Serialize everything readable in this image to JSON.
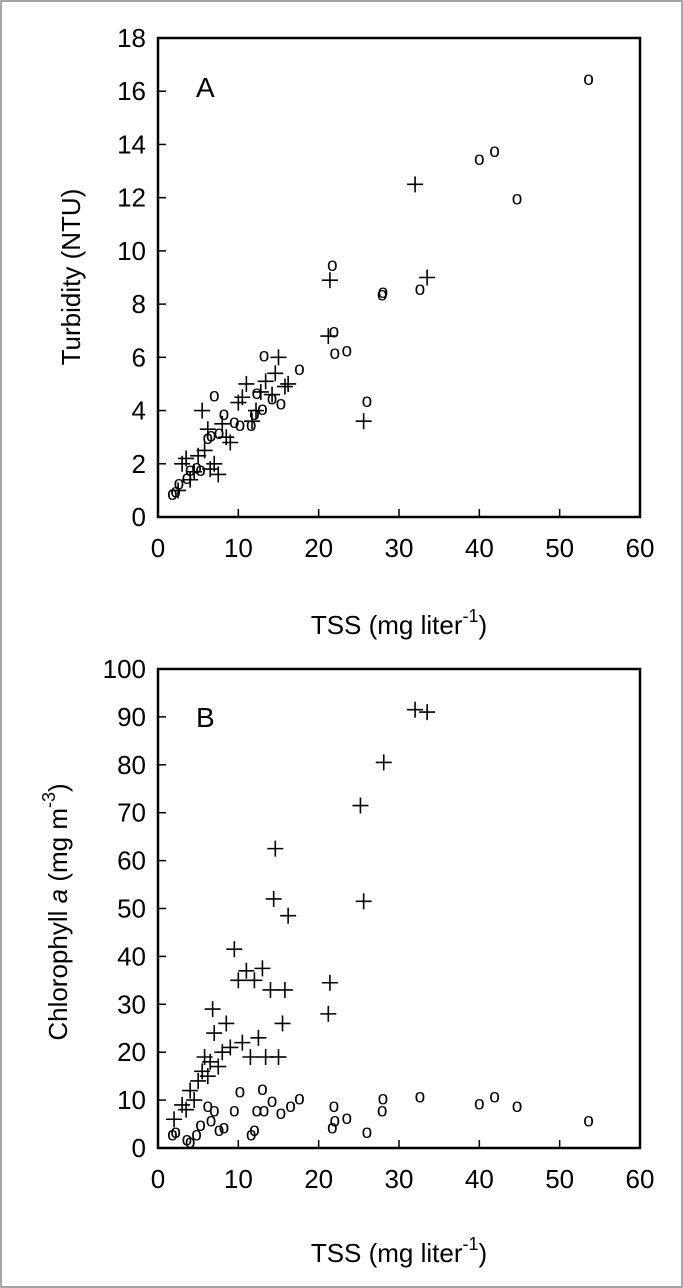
{
  "chart_data": [
    {
      "type": "scatter",
      "panel_label": "A",
      "xlabel": "TSS (mg liter",
      "xlabel_sup": "-1",
      "xlabel_end": ")",
      "ylabel": "Turbidity (NTU)",
      "xlim": [
        0,
        60
      ],
      "ylim": [
        0,
        18
      ],
      "xticks": [
        "0",
        "10",
        "20",
        "30",
        "40",
        "50",
        "60"
      ],
      "yticks": [
        "0",
        "2",
        "4",
        "6",
        "8",
        "10",
        "12",
        "14",
        "16",
        "18"
      ],
      "grid": false,
      "series": [
        {
          "marker": "o",
          "x": [
            1.8,
            2.2,
            2.6,
            3.6,
            4.0,
            4.8,
            5.3,
            6.2,
            6.6,
            7.0,
            7.6,
            8.2,
            9.5,
            10.2,
            11.6,
            12.0,
            12.3,
            13.0,
            13.2,
            14.2,
            15.3,
            17.6,
            21.7,
            21.9,
            22.0,
            23.5,
            26.0,
            27.9,
            28.0,
            32.6,
            40.0,
            41.9,
            44.7,
            53.6
          ],
          "y": [
            0.9,
            1.0,
            1.3,
            1.5,
            1.8,
            1.9,
            1.8,
            3.0,
            3.1,
            4.6,
            3.2,
            3.9,
            3.6,
            3.5,
            3.5,
            3.9,
            4.7,
            4.1,
            6.1,
            4.5,
            4.3,
            5.6,
            9.5,
            7.0,
            6.2,
            6.3,
            4.4,
            8.4,
            8.5,
            8.6,
            13.5,
            13.8,
            12.0,
            16.5
          ]
        },
        {
          "marker": "+",
          "x": [
            2.5,
            3.0,
            3.5,
            4.0,
            4.5,
            5.0,
            5.5,
            5.8,
            6.2,
            6.5,
            7.0,
            7.5,
            8.0,
            8.5,
            9.0,
            10.0,
            10.5,
            11.0,
            11.7,
            12.2,
            12.8,
            13.4,
            14.2,
            14.6,
            15.0,
            15.8,
            16.2,
            21.2,
            21.4,
            25.6,
            32.0,
            33.5
          ],
          "y": [
            1.0,
            2.0,
            2.2,
            1.4,
            1.7,
            2.3,
            4.0,
            2.5,
            3.3,
            1.8,
            2.0,
            1.6,
            3.5,
            3.0,
            2.8,
            4.3,
            4.5,
            5.0,
            3.6,
            4.0,
            4.7,
            5.1,
            4.6,
            5.4,
            6.0,
            4.9,
            5.0,
            6.8,
            8.9,
            3.6,
            12.5,
            9.0
          ]
        }
      ]
    },
    {
      "type": "scatter",
      "panel_label": "B",
      "xlabel": "TSS (mg liter",
      "xlabel_sup": "-1",
      "xlabel_end": ")",
      "ylabel_pre": "Chlorophyll ",
      "ylabel_italic": "a",
      "ylabel_post": " (mg m",
      "ylabel_sup": "-3",
      "ylabel_end": ")",
      "xlim": [
        0,
        60
      ],
      "ylim": [
        0,
        100
      ],
      "xticks": [
        "0",
        "10",
        "20",
        "30",
        "40",
        "50",
        "60"
      ],
      "yticks": [
        "0",
        "10",
        "20",
        "30",
        "40",
        "50",
        "60",
        "70",
        "80",
        "90",
        "100"
      ],
      "grid": false,
      "series": [
        {
          "marker": "o",
          "x": [
            1.8,
            2.2,
            3.6,
            4.0,
            4.8,
            5.3,
            6.2,
            6.6,
            7.0,
            7.6,
            8.2,
            9.5,
            10.2,
            11.6,
            12.0,
            12.3,
            13.0,
            13.2,
            14.2,
            15.3,
            16.5,
            17.6,
            21.7,
            21.9,
            22.0,
            23.5,
            26.0,
            27.9,
            28.0,
            32.6,
            40.0,
            41.9,
            44.7,
            53.6
          ],
          "y": [
            3.0,
            3.5,
            2.0,
            1.5,
            3.0,
            5.0,
            9.0,
            6.0,
            8.0,
            4.0,
            4.5,
            8.0,
            12.0,
            3.0,
            4.0,
            8.0,
            12.5,
            8.0,
            10.0,
            7.5,
            9.0,
            10.5,
            4.5,
            9.0,
            6.0,
            6.5,
            3.5,
            8.0,
            10.5,
            11.0,
            9.5,
            11.0,
            9.0,
            6.0
          ]
        },
        {
          "marker": "+",
          "x": [
            2.0,
            3.0,
            3.5,
            4.0,
            4.5,
            5.0,
            5.5,
            5.8,
            6.2,
            6.5,
            6.8,
            7.0,
            7.5,
            8.0,
            8.5,
            9.0,
            9.5,
            10.0,
            10.5,
            11.0,
            11.5,
            12.0,
            12.5,
            13.0,
            13.4,
            14.0,
            14.4,
            14.6,
            15.0,
            15.5,
            15.8,
            16.2,
            21.2,
            21.4,
            25.2,
            25.6,
            28.1,
            32.0,
            33.5
          ],
          "y": [
            6.0,
            9.0,
            8.0,
            12.0,
            10.0,
            14.0,
            16.0,
            19.0,
            15.0,
            18.0,
            29.0,
            24.0,
            17.0,
            20.0,
            26.0,
            21.0,
            41.5,
            35.0,
            22.0,
            37.0,
            19.0,
            35.0,
            23.0,
            37.5,
            19.0,
            33.0,
            52.0,
            62.5,
            19.0,
            26.0,
            33.0,
            48.5,
            28.0,
            34.5,
            71.5,
            51.5,
            80.5,
            91.5,
            91.0
          ]
        }
      ]
    }
  ]
}
